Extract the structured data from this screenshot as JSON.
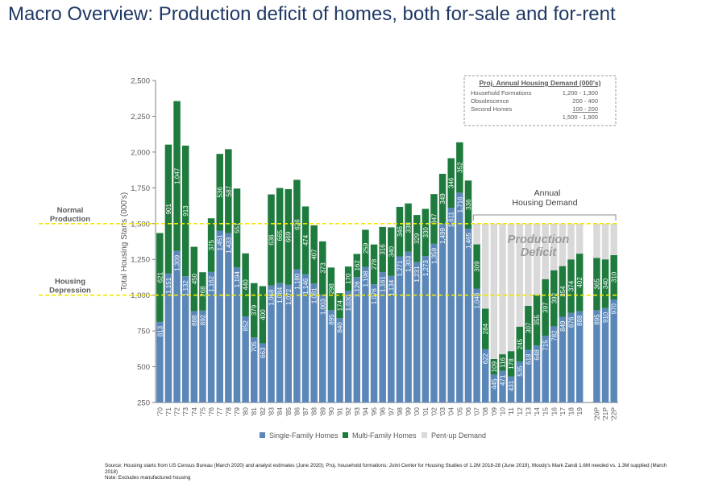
{
  "header": {
    "title": "Macro Overview: Production deficit of homes, both for-sale and for-rent"
  },
  "chart_data": {
    "type": "bar",
    "stacked": true,
    "ylabel": "Total Housing Starts (000's)",
    "ylim": [
      250,
      2500
    ],
    "yticks": [
      "250",
      "500",
      "750",
      "1,000",
      "1,250",
      "1,500",
      "1,750",
      "2,000",
      "2,250",
      "2,500"
    ],
    "ytick_values": [
      250,
      500,
      750,
      1000,
      1250,
      1500,
      1750,
      2000,
      2250,
      2500
    ],
    "categories": [
      "'70",
      "'71",
      "'72",
      "'73",
      "'74",
      "'75",
      "'76",
      "'77",
      "'78",
      "'79",
      "'80",
      "'81",
      "'82",
      "'83",
      "'84",
      "'85",
      "'86",
      "'87",
      "'88",
      "'89",
      "'90",
      "'91",
      "'92",
      "'93",
      "'94",
      "'95",
      "'96",
      "'97",
      "'98",
      "'99",
      "'00",
      "'01",
      "'02",
      "'03",
      "'04",
      "'05",
      "'06",
      "'07",
      "'08",
      "'09",
      "'10",
      "'11",
      "'12",
      "'13",
      "'14",
      "'15",
      "'16",
      "'17",
      "'18",
      "'19",
      "",
      "'20P",
      "'21P",
      "'22P"
    ],
    "single_family": [
      813,
      1151,
      1309,
      1132,
      888,
      892,
      1162,
      1451,
      1433,
      1194,
      852,
      705,
      663,
      1068,
      1084,
      1072,
      1180,
      1146,
      1081,
      1003,
      895,
      840,
      1030,
      1126,
      1198,
      1076,
      1161,
      1134,
      1271,
      1303,
      1231,
      1273,
      1359,
      1499,
      1611,
      1716,
      1465,
      1046,
      622,
      445,
      471,
      431,
      535,
      618,
      648,
      715,
      782,
      849,
      876,
      888,
      null,
      895,
      910,
      970
    ],
    "multi_family": [
      621,
      901,
      1047,
      913,
      450,
      268,
      375,
      536,
      587,
      551,
      440,
      379,
      400,
      636,
      665,
      669,
      626,
      474,
      407,
      373,
      298,
      174,
      170,
      162,
      259,
      278,
      316,
      340,
      346,
      338,
      329,
      330,
      347,
      349,
      346,
      352,
      336,
      309,
      284,
      109,
      116,
      178,
      245,
      307,
      355,
      397,
      392,
      354,
      374,
      402,
      null,
      365,
      340,
      310
    ],
    "pent_up_demand": [
      null,
      null,
      null,
      null,
      null,
      null,
      null,
      null,
      null,
      null,
      null,
      null,
      null,
      null,
      null,
      null,
      null,
      null,
      null,
      null,
      null,
      null,
      null,
      null,
      null,
      null,
      null,
      null,
      null,
      null,
      null,
      null,
      null,
      null,
      null,
      null,
      null,
      145,
      594,
      946,
      913,
      891,
      720,
      575,
      497,
      388,
      326,
      297,
      250,
      210,
      null,
      240,
      250,
      220
    ],
    "sf_labels": [
      "813",
      "1,151",
      "1,309",
      "1,132",
      "888",
      "892",
      "1,162",
      "1,451",
      "1,433",
      "1,194",
      "852",
      "705",
      "663",
      "1,068",
      "1,084",
      "1,072",
      "1,180",
      "1,146",
      "1,081",
      "1,003",
      "895",
      "840",
      "1,030",
      "1,126",
      "1,198",
      "1,076",
      "1,161",
      "1,134",
      "1,271",
      "1,303",
      "1,231",
      "1,273",
      "1,359",
      "1,499",
      "1,611",
      "1,716",
      "1,465",
      "1,046",
      "622",
      "445",
      "471",
      "431",
      "535",
      "618",
      "648",
      "715",
      "782",
      "849",
      "876",
      "888",
      "",
      "895",
      "910",
      "970"
    ],
    "mf_labels": [
      "621",
      "901",
      "1,047",
      "913",
      "450",
      "268",
      "375",
      "536",
      "587",
      "551",
      "440",
      "379",
      "400",
      "636",
      "665",
      "669",
      "626",
      "474",
      "407",
      "373",
      "298",
      "174",
      "170",
      "162",
      "259",
      "278",
      "316",
      "340",
      "346",
      "338",
      "329",
      "330",
      "347",
      "349",
      "346",
      "352",
      "336",
      "309",
      "284",
      "109",
      "116",
      "178",
      "245",
      "307",
      "355",
      "397",
      "392",
      "354",
      "374",
      "402",
      "",
      "365",
      "340",
      "310"
    ],
    "legend": [
      "Single-Family Homes",
      "Multi-Family Homes",
      "Pent-up Demand"
    ],
    "legend_placement": "bottom",
    "grid": false,
    "reference_lines": [
      {
        "value": 1500,
        "label": "Normal Production"
      },
      {
        "value": 1000,
        "label": "Housing Depression"
      }
    ],
    "annotations": {
      "annual_demand": "Annual Housing Demand",
      "deficit": "Production Deficit"
    },
    "demand_box": {
      "title": "Proj. Annual Housing Demand (000's)",
      "rows": [
        {
          "label": "Household Formations",
          "value": "1,200 - 1,300"
        },
        {
          "label": "Obsolescence",
          "value": "200 -  400"
        },
        {
          "label": "Second Homes",
          "value": "100 -  200"
        },
        {
          "label": "",
          "value": "1,500 - 1,900"
        }
      ]
    },
    "colors": {
      "single_family": "#5b87b8",
      "multi_family": "#1f7a3e",
      "pent_up": "#d9d9d9",
      "reference_line": "#f2e600",
      "label_text": "#ffffff",
      "deficit_text": "#9a9a9a"
    }
  },
  "footnote": {
    "source": "Source: Housing starts from US Census Bureau (March 2020) and analyst estimates (June 2020); Proj. household formations: Joint Center for Housing Studies of 1.2M 2018-28 (June 2019), Moody's Mark Zandi 1.6M needed vs. 1.3M supplied (March 2018)",
    "note": "Note: Excludes manufactured housing"
  }
}
